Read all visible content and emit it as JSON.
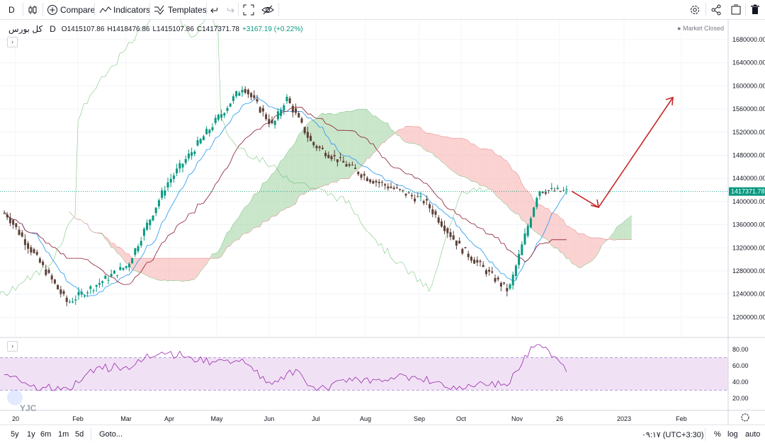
{
  "toolbar": {
    "interval": "D",
    "compare_label": "Compare",
    "indicators_label": "Indicators",
    "templates_label": "Templates"
  },
  "legend": {
    "symbol": "کل بورس",
    "interval": "D",
    "open": "O1415107.86",
    "high": "H1418476.86",
    "low": "L1415107.86",
    "close": "C1417371.78",
    "change": "+3167.19 (+0.22%)",
    "market_status": "Market Closed"
  },
  "price_axis": {
    "ticks": [
      "1680000.00",
      "1640000.00",
      "1600000.00",
      "1560000.00",
      "1520000.00",
      "1480000.00",
      "1440000.00",
      "1400000.00",
      "1360000.00",
      "1320000.00",
      "1280000.00",
      "1240000.00",
      "1200000.00"
    ],
    "last_price_label": "1417371.78"
  },
  "rsi_axis": {
    "ticks": [
      "80.00",
      "60.00",
      "40.00",
      "20.00"
    ]
  },
  "time_axis": {
    "labels": [
      "20",
      "Feb",
      "Mar",
      "Apr",
      "May",
      "Jun",
      "Jul",
      "Aug",
      "Sep",
      "Oct",
      "Nov",
      "26",
      "2023",
      "Feb"
    ]
  },
  "bottom": {
    "ranges": [
      "5y",
      "1y",
      "6m",
      "1m",
      "5d"
    ],
    "goto_label": "Goto...",
    "clock": "۰۹:۱۷ (UTC+3:30)",
    "percent_label": "%",
    "log_label": "log",
    "auto_label": "auto"
  },
  "watermark": "YJC",
  "colors": {
    "up": "#089981",
    "down": "#5d4037",
    "tenkan": "#2196f3",
    "kijun": "#8b1a2f",
    "lagging": "#4caf50",
    "cloud_bull": "#a5d6a7",
    "cloud_bear": "#f8b4b4",
    "rsi_line": "#9c27b0",
    "rsi_band": "#e9d6f0",
    "arrow": "#c62828"
  },
  "chart_data": {
    "type": "candlestick",
    "title": "کل بورس",
    "interval": "D",
    "ylim": [
      1180000,
      1700000
    ],
    "last_close": 1417371.78,
    "x_range": [
      "2022-01",
      "2023-02"
    ],
    "keypoints": [
      {
        "t": "Jan",
        "price": 1380000
      },
      {
        "t": "Feb-early",
        "price": 1225000
      },
      {
        "t": "Mar",
        "price": 1290000
      },
      {
        "t": "Apr",
        "price": 1430000
      },
      {
        "t": "May-mid",
        "price": 1600000
      },
      {
        "t": "Jun",
        "price": 1530000
      },
      {
        "t": "Jun-mid",
        "price": 1580000
      },
      {
        "t": "Jul",
        "price": 1500000
      },
      {
        "t": "Aug",
        "price": 1440000
      },
      {
        "t": "Sep",
        "price": 1400000
      },
      {
        "t": "Oct",
        "price": 1320000
      },
      {
        "t": "Nov-early",
        "price": 1245000
      },
      {
        "t": "Nov-mid",
        "price": 1420000
      },
      {
        "t": "26",
        "price": 1417371.78
      }
    ],
    "rsi": {
      "ylim": [
        0,
        100
      ],
      "band": [
        30,
        70
      ],
      "ticks": [
        20,
        40,
        60,
        80
      ]
    },
    "projection": [
      {
        "t": "26",
        "price": 1418000
      },
      {
        "t": "Dec",
        "price": 1390000
      },
      {
        "t": "Jan",
        "price": 1580000
      }
    ]
  }
}
